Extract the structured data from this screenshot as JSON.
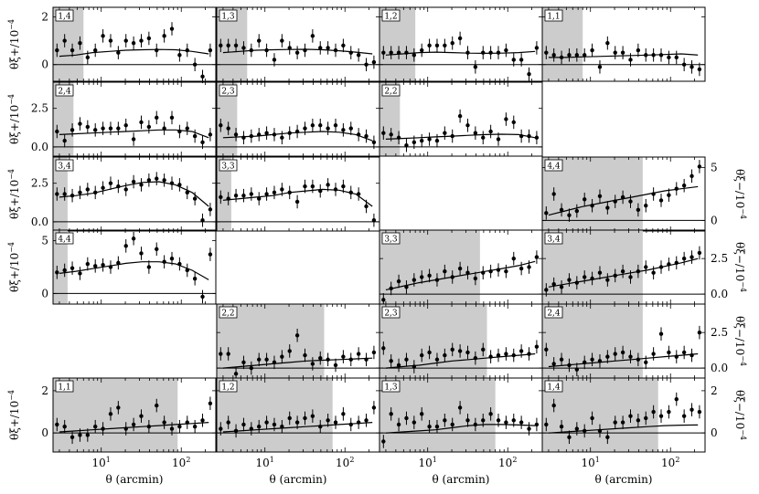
{
  "figure": {
    "xlabel": "θ (arcmin)",
    "x_ticks": [
      "10",
      "10",
      "10"
    ],
    "x_tick_exponents": [
      "1",
      "2"
    ]
  },
  "chart_data": [
    {
      "type": "scatter",
      "tag": "1,4",
      "y_quantity": "xi_plus",
      "ylim": [
        -0.7,
        2.4
      ],
      "y_ticks": [
        0,
        2
      ],
      "scale_cut_arcmin": 6,
      "series": [
        {
          "name": "data",
          "values": [
            0.6,
            1.0,
            0.6,
            0.9,
            0.3,
            0.6,
            1.2,
            1.0,
            0.5,
            1.0,
            0.9,
            1.0,
            1.1,
            0.6,
            1.2,
            1.5,
            0.4,
            0.6,
            0.0,
            -0.5,
            0.6
          ]
        },
        {
          "name": "model",
          "values": [
            0.35,
            0.4,
            0.5,
            0.55,
            0.6,
            0.62,
            0.63,
            0.62,
            0.55,
            0.45
          ]
        }
      ]
    },
    {
      "type": "scatter",
      "tag": "1,3",
      "y_quantity": "xi_plus",
      "ylim": [
        -0.7,
        2.4
      ],
      "y_ticks": [
        0,
        2
      ],
      "scale_cut_arcmin": 6,
      "series": [
        {
          "name": "data",
          "values": [
            0.8,
            0.8,
            0.8,
            0.7,
            0.6,
            1.0,
            0.6,
            0.2,
            1.0,
            0.7,
            0.5,
            0.6,
            1.2,
            0.7,
            0.7,
            0.6,
            0.8,
            0.5,
            0.4,
            0.0,
            0.1
          ]
        },
        {
          "name": "model",
          "values": [
            0.5,
            0.55,
            0.6,
            0.62,
            0.63,
            0.64,
            0.62,
            0.58,
            0.52,
            0.45
          ]
        }
      ]
    },
    {
      "type": "scatter",
      "tag": "1,2",
      "y_quantity": "xi_plus",
      "ylim": [
        -0.7,
        2.4
      ],
      "y_ticks": [
        0,
        2
      ],
      "scale_cut_arcmin": 7,
      "series": [
        {
          "name": "data",
          "values": [
            0.5,
            0.5,
            0.5,
            0.5,
            0.4,
            0.6,
            0.8,
            0.8,
            0.8,
            0.9,
            1.1,
            0.5,
            -0.1,
            0.5,
            0.5,
            0.5,
            0.6,
            0.2,
            0.2,
            -0.4,
            0.7
          ]
        },
        {
          "name": "model",
          "values": [
            0.4,
            0.45,
            0.5,
            0.52,
            0.5,
            0.48,
            0.47,
            0.48,
            0.5,
            0.55
          ]
        }
      ]
    },
    {
      "type": "scatter",
      "tag": "1,1",
      "y_quantity": "xi_plus",
      "ylim": [
        -0.7,
        2.4
      ],
      "y_ticks": [
        0,
        2
      ],
      "scale_cut_arcmin": 8,
      "series": [
        {
          "name": "data",
          "values": [
            0.5,
            0.4,
            0.3,
            0.4,
            0.4,
            0.4,
            0.6,
            -0.1,
            0.9,
            0.5,
            0.5,
            0.2,
            0.6,
            0.4,
            0.4,
            0.4,
            0.3,
            0.3,
            0.0,
            -0.1,
            -0.2
          ]
        },
        {
          "name": "model",
          "values": [
            0.3,
            0.3,
            0.32,
            0.34,
            0.36,
            0.38,
            0.4,
            0.42,
            0.45,
            0.4
          ]
        }
      ]
    },
    {
      "type": "scatter",
      "tag": "2,4",
      "y_quantity": "xi_plus",
      "ylim": [
        -0.6,
        4.2
      ],
      "y_ticks": [
        0.0,
        2.5
      ],
      "scale_cut_arcmin": 4.5,
      "series": [
        {
          "name": "data",
          "values": [
            1.0,
            0.4,
            1.1,
            1.5,
            1.3,
            1.1,
            1.2,
            1.2,
            1.2,
            1.4,
            0.5,
            1.6,
            1.3,
            1.9,
            1.2,
            1.9,
            1.0,
            1.2,
            0.7,
            0.3,
            0.8
          ]
        },
        {
          "name": "model",
          "values": [
            0.8,
            0.85,
            0.9,
            0.95,
            1.0,
            1.05,
            1.1,
            1.1,
            1.0,
            0.6
          ]
        }
      ]
    },
    {
      "type": "scatter",
      "tag": "2,3",
      "y_quantity": "xi_plus",
      "ylim": [
        -0.6,
        4.2
      ],
      "y_ticks": [
        0.0,
        2.5
      ],
      "scale_cut_arcmin": 4.5,
      "series": [
        {
          "name": "data",
          "values": [
            1.4,
            1.2,
            0.8,
            0.6,
            0.7,
            0.8,
            0.9,
            0.8,
            0.6,
            0.9,
            1.0,
            1.2,
            1.4,
            1.4,
            1.2,
            1.4,
            1.1,
            1.2,
            0.8,
            0.7,
            0.3
          ]
        },
        {
          "name": "model",
          "values": [
            0.6,
            0.65,
            0.7,
            0.8,
            0.9,
            0.95,
            1.0,
            0.95,
            0.8,
            0.4
          ]
        }
      ]
    },
    {
      "type": "scatter",
      "tag": "2,2",
      "y_quantity": "xi_plus",
      "ylim": [
        -0.6,
        4.2
      ],
      "y_ticks": [
        0.0,
        2.5
      ],
      "scale_cut_arcmin": 4.5,
      "series": [
        {
          "name": "data",
          "values": [
            0.9,
            0.8,
            0.6,
            0.1,
            0.3,
            0.4,
            0.5,
            0.4,
            0.9,
            0.7,
            2.0,
            1.4,
            0.9,
            0.6,
            1.0,
            0.5,
            1.8,
            1.6,
            0.7,
            0.7,
            0.6
          ]
        },
        {
          "name": "model",
          "values": [
            0.5,
            0.55,
            0.6,
            0.65,
            0.7,
            0.75,
            0.8,
            0.82,
            0.8,
            0.6
          ]
        }
      ]
    },
    {
      "type": "empty"
    },
    {
      "type": "scatter",
      "tag": "3,4",
      "y_quantity": "xi_plus",
      "ylim": [
        -0.6,
        4.2
      ],
      "y_ticks": [
        0.0,
        2.5
      ],
      "scale_cut_arcmin": 3.8,
      "series": [
        {
          "name": "data",
          "values": [
            1.8,
            1.8,
            1.7,
            1.9,
            2.1,
            1.9,
            2.2,
            2.5,
            2.3,
            2.1,
            2.6,
            2.4,
            2.7,
            2.8,
            2.7,
            2.5,
            2.4,
            1.9,
            1.5,
            0.1,
            0.8
          ]
        },
        {
          "name": "model",
          "values": [
            1.6,
            1.7,
            1.85,
            2.1,
            2.35,
            2.55,
            2.6,
            2.4,
            1.9,
            1.0
          ]
        }
      ]
    },
    {
      "type": "scatter",
      "tag": "3,3",
      "y_quantity": "xi_plus",
      "ylim": [
        -0.6,
        4.2
      ],
      "y_ticks": [
        0.0,
        2.5
      ],
      "scale_cut_arcmin": 3.8,
      "series": [
        {
          "name": "data",
          "values": [
            1.6,
            1.5,
            1.7,
            1.7,
            1.8,
            1.5,
            1.8,
            1.9,
            2.1,
            1.9,
            1.3,
            2.3,
            2.3,
            2.0,
            2.4,
            2.1,
            2.3,
            1.9,
            1.8,
            1.0,
            0.1
          ]
        },
        {
          "name": "model",
          "values": [
            1.4,
            1.5,
            1.6,
            1.7,
            1.9,
            2.0,
            2.1,
            2.05,
            1.8,
            1.0
          ]
        }
      ]
    },
    {
      "type": "empty"
    },
    {
      "type": "scatter",
      "tag": "4,4",
      "y_quantity": "xi_minus",
      "ylim": [
        -1.0,
        6.0
      ],
      "y_ticks": [
        0,
        5
      ],
      "scale_cut_arcmin": 45,
      "series": [
        {
          "name": "data",
          "values": [
            0.7,
            2.5,
            1.0,
            0.5,
            0.9,
            2.0,
            1.4,
            2.3,
            1.2,
            1.8,
            2.2,
            1.8,
            1.0,
            1.4,
            2.5,
            1.9,
            2.4,
            3.0,
            3.3,
            4.2,
            5.1
          ]
        },
        {
          "name": "model",
          "values": [
            0.5,
            0.9,
            1.3,
            1.6,
            1.9,
            2.2,
            2.5,
            2.8,
            3.0,
            3.2
          ]
        }
      ]
    },
    {
      "type": "scatter",
      "tag": "4,4",
      "y_quantity": "xi_plus",
      "ylim": [
        -1.0,
        6.0
      ],
      "y_ticks": [
        0,
        5
      ],
      "scale_cut_arcmin": 3.8,
      "series": [
        {
          "name": "data",
          "values": [
            2.0,
            2.2,
            2.4,
            1.9,
            2.8,
            2.6,
            2.7,
            2.5,
            2.9,
            4.5,
            5.2,
            3.8,
            2.5,
            4.2,
            3.0,
            3.3,
            2.8,
            2.2,
            1.4,
            -0.3,
            3.7
          ]
        },
        {
          "name": "model",
          "values": [
            1.9,
            2.1,
            2.35,
            2.6,
            2.85,
            3.0,
            3.0,
            2.8,
            2.2,
            1.3
          ]
        }
      ]
    },
    {
      "type": "empty"
    },
    {
      "type": "scatter",
      "tag": "3,3",
      "y_quantity": "xi_minus",
      "ylim": [
        -0.7,
        4.5
      ],
      "y_ticks": [
        0.0,
        2.5
      ],
      "scale_cut_arcmin": 45,
      "series": [
        {
          "name": "data",
          "values": [
            -0.4,
            0.4,
            0.9,
            0.5,
            1.0,
            1.2,
            1.3,
            1.0,
            1.6,
            1.2,
            1.8,
            1.5,
            1.1,
            1.5,
            1.6,
            1.7,
            1.6,
            2.5,
            1.8,
            1.9,
            2.6
          ]
        },
        {
          "name": "model",
          "values": [
            0.3,
            0.55,
            0.8,
            1.0,
            1.2,
            1.4,
            1.6,
            1.8,
            2.0,
            2.3
          ]
        }
      ]
    },
    {
      "type": "scatter",
      "tag": "3,4",
      "y_quantity": "xi_minus",
      "ylim": [
        -0.7,
        4.5
      ],
      "y_ticks": [
        0.0,
        2.5
      ],
      "scale_cut_arcmin": 45,
      "series": [
        {
          "name": "data",
          "values": [
            0.3,
            0.7,
            0.5,
            1.0,
            0.8,
            1.2,
            1.1,
            1.5,
            1.0,
            1.3,
            1.6,
            1.2,
            1.6,
            1.9,
            1.5,
            1.9,
            2.1,
            2.2,
            2.5,
            2.6,
            2.9
          ]
        },
        {
          "name": "model",
          "values": [
            0.5,
            0.7,
            0.9,
            1.1,
            1.3,
            1.5,
            1.7,
            1.95,
            2.2,
            2.5
          ]
        }
      ]
    },
    {
      "type": "empty"
    },
    {
      "type": "scatter",
      "tag": "2,2",
      "y_quantity": "xi_minus",
      "ylim": [
        -0.7,
        4.5
      ],
      "y_ticks": [
        0.0,
        2.5
      ],
      "scale_cut_arcmin": 55,
      "series": [
        {
          "name": "data",
          "values": [
            1.0,
            1.0,
            -0.4,
            0.4,
            0.0,
            0.6,
            0.6,
            0.4,
            0.8,
            1.2,
            2.3,
            0.9,
            0.3,
            0.7,
            0.6,
            0.2,
            0.8,
            0.6,
            1.0,
            0.6,
            1.1
          ]
        },
        {
          "name": "model",
          "values": [
            0.0,
            0.1,
            0.2,
            0.3,
            0.4,
            0.5,
            0.55,
            0.6,
            0.65,
            0.7
          ]
        }
      ]
    },
    {
      "type": "scatter",
      "tag": "2,3",
      "y_quantity": "xi_minus",
      "ylim": [
        -0.7,
        4.5
      ],
      "y_ticks": [
        0.0,
        2.5
      ],
      "scale_cut_arcmin": 55,
      "series": [
        {
          "name": "data",
          "values": [
            1.4,
            0.5,
            0.2,
            0.6,
            0.1,
            0.9,
            1.1,
            0.6,
            0.9,
            1.3,
            1.2,
            1.1,
            0.7,
            1.3,
            0.8,
            0.9,
            1.0,
            0.9,
            1.2,
            1.0,
            1.5
          ]
        },
        {
          "name": "model",
          "values": [
            0.0,
            0.1,
            0.2,
            0.35,
            0.5,
            0.6,
            0.7,
            0.8,
            0.9,
            1.0
          ]
        }
      ]
    },
    {
      "type": "scatter",
      "tag": "2,4",
      "y_quantity": "xi_minus",
      "ylim": [
        -0.7,
        4.5
      ],
      "y_ticks": [
        0.0,
        2.5
      ],
      "scale_cut_arcmin": 45,
      "series": [
        {
          "name": "data",
          "values": [
            1.3,
            0.3,
            0.6,
            0.2,
            -0.1,
            0.4,
            0.6,
            0.5,
            0.8,
            1.0,
            1.1,
            0.8,
            0.6,
            0.4,
            1.0,
            2.4,
            1.1,
            0.8,
            1.1,
            0.9,
            2.5
          ]
        },
        {
          "name": "model",
          "values": [
            0.1,
            0.2,
            0.3,
            0.4,
            0.5,
            0.6,
            0.7,
            0.8,
            0.9,
            1.0
          ]
        }
      ]
    },
    {
      "type": "scatter",
      "tag": "1,1",
      "y_quantity": "xi_plus",
      "ylim": [
        -0.9,
        2.6
      ],
      "y_ticks": [
        0,
        2
      ],
      "scale_cut_arcmin": 90,
      "series": [
        {
          "name": "data",
          "values": [
            0.4,
            0.3,
            -0.2,
            -0.1,
            -0.1,
            0.3,
            0.2,
            0.9,
            1.2,
            0.2,
            0.4,
            0.8,
            0.3,
            1.3,
            0.5,
            0.2,
            0.3,
            0.5,
            0.3,
            0.6,
            1.4
          ]
        },
        {
          "name": "model",
          "values": [
            0.05,
            0.1,
            0.15,
            0.2,
            0.25,
            0.3,
            0.35,
            0.4,
            0.45,
            0.5
          ]
        }
      ]
    },
    {
      "type": "scatter",
      "tag": "1,2",
      "y_quantity": "xi_plus",
      "ylim": [
        -0.9,
        2.6
      ],
      "y_ticks": [
        0,
        2
      ],
      "scale_cut_arcmin": 70,
      "series": [
        {
          "name": "data",
          "values": [
            0.2,
            0.5,
            0.1,
            0.4,
            0.2,
            0.3,
            0.5,
            0.4,
            0.3,
            0.7,
            0.5,
            0.7,
            0.8,
            0.3,
            0.6,
            0.5,
            0.9,
            0.4,
            0.5,
            0.6,
            1.2
          ]
        },
        {
          "name": "model",
          "values": [
            0.05,
            0.1,
            0.15,
            0.2,
            0.25,
            0.3,
            0.35,
            0.4,
            0.45,
            0.5
          ]
        }
      ]
    },
    {
      "type": "scatter",
      "tag": "1,3",
      "y_quantity": "xi_plus",
      "ylim": [
        -0.9,
        2.6
      ],
      "y_ticks": [
        0,
        2
      ],
      "scale_cut_arcmin": 70,
      "series": [
        {
          "name": "data",
          "values": [
            -0.4,
            0.9,
            0.4,
            0.7,
            0.5,
            0.9,
            0.3,
            0.3,
            0.6,
            0.4,
            1.2,
            0.6,
            0.4,
            0.6,
            0.9,
            0.6,
            0.5,
            0.6,
            0.5,
            0.2,
            0.4
          ]
        },
        {
          "name": "model",
          "values": [
            0.0,
            0.05,
            0.1,
            0.15,
            0.25,
            0.35,
            0.4,
            0.4,
            0.38,
            0.35
          ]
        }
      ]
    },
    {
      "type": "scatter",
      "tag": "1,4",
      "y_quantity": "xi_minus",
      "ylim": [
        -0.9,
        2.6
      ],
      "y_ticks": [
        0,
        2
      ],
      "scale_cut_arcmin": 70,
      "series": [
        {
          "name": "data",
          "values": [
            0.4,
            1.3,
            0.3,
            -0.2,
            0.2,
            0.1,
            0.7,
            0.1,
            -0.2,
            0.5,
            0.5,
            0.8,
            0.6,
            0.7,
            1.0,
            0.8,
            1.0,
            1.6,
            0.8,
            1.1,
            1.0
          ]
        },
        {
          "name": "model",
          "values": [
            0.0,
            0.05,
            0.1,
            0.15,
            0.2,
            0.25,
            0.3,
            0.35,
            0.37,
            0.38
          ]
        }
      ]
    }
  ]
}
